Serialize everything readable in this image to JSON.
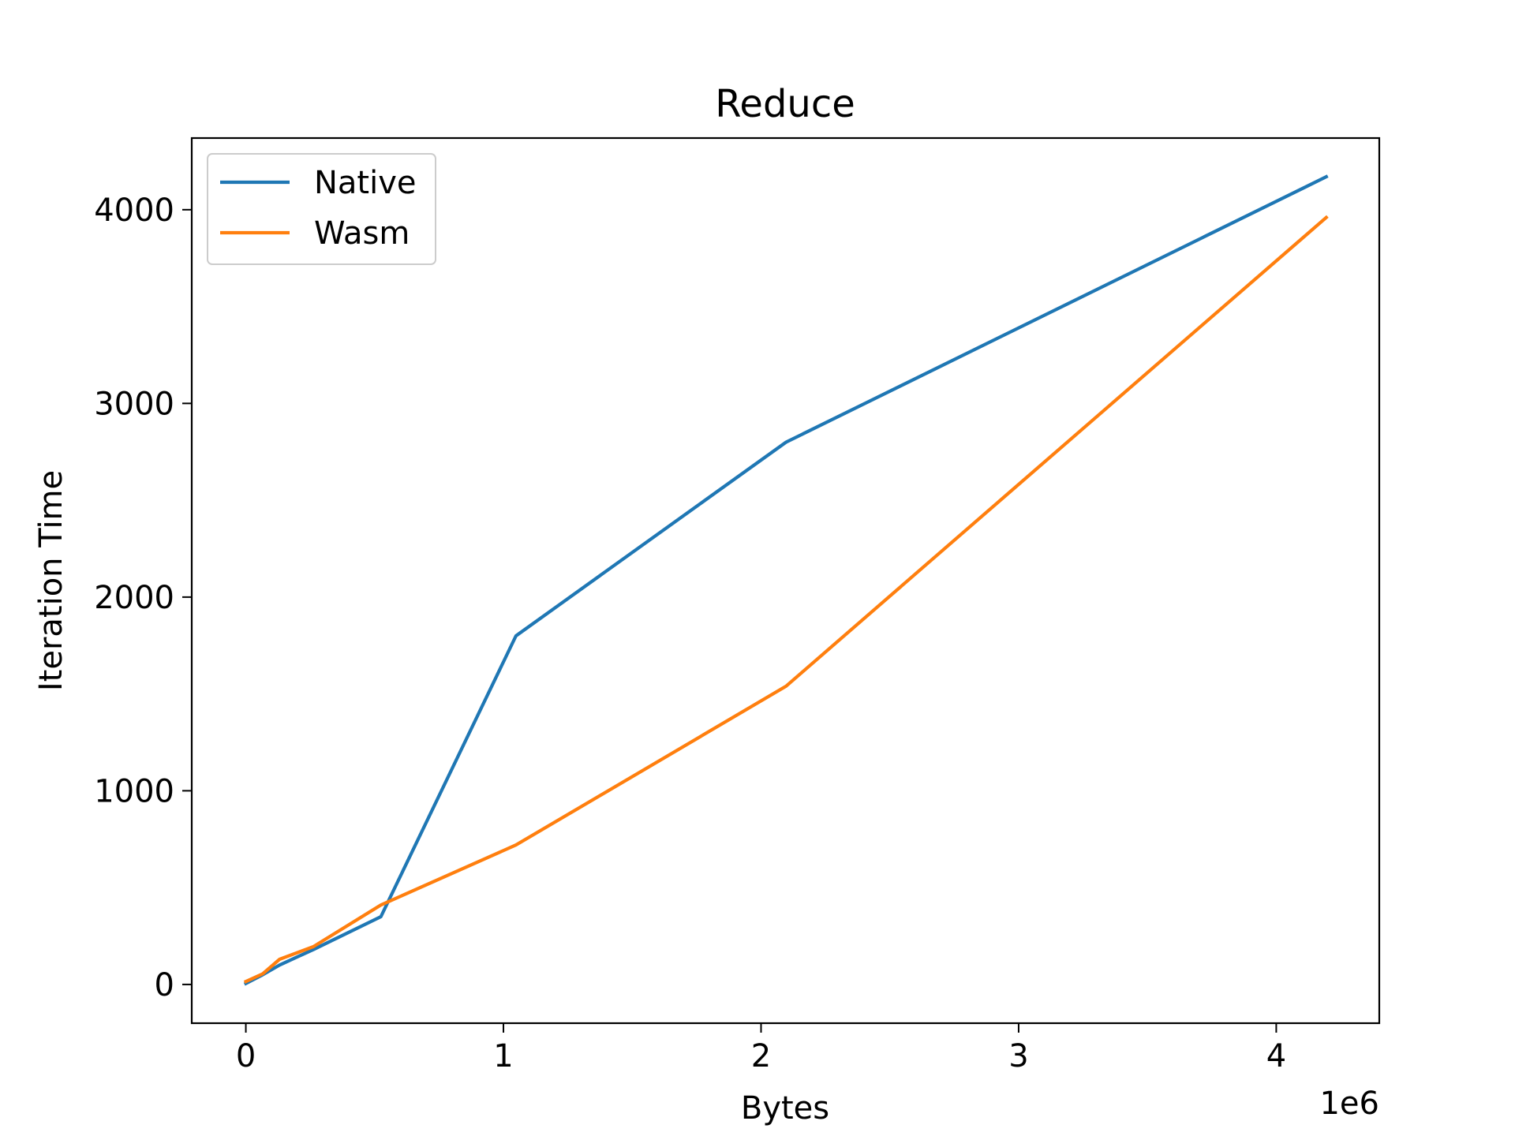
{
  "chart_data": {
    "type": "line",
    "title": "Reduce",
    "xlabel": "Bytes",
    "ylabel": "Iteration Time",
    "x_offset_label": "1e6",
    "x_scale": 1000000,
    "xlim": [
      -210000,
      4400000
    ],
    "ylim": [
      -200,
      4370
    ],
    "x_ticks": [
      0,
      1000000,
      2000000,
      3000000,
      4000000
    ],
    "x_tick_labels": [
      "0",
      "1",
      "2",
      "3",
      "4"
    ],
    "y_ticks": [
      0,
      1000,
      2000,
      3000,
      4000
    ],
    "y_tick_labels": [
      "0",
      "1000",
      "2000",
      "3000",
      "4000"
    ],
    "grid": false,
    "legend_position": "top-left",
    "series": [
      {
        "name": "Native",
        "color": "#1f77b4",
        "x": [
          0,
          65536,
          131072,
          262144,
          524288,
          1048576,
          2097152,
          4194304
        ],
        "y": [
          5,
          50,
          100,
          180,
          350,
          1800,
          2800,
          4170
        ]
      },
      {
        "name": "Wasm",
        "color": "#ff7f0e",
        "x": [
          0,
          65536,
          131072,
          262144,
          524288,
          1048576,
          2097152,
          4194304
        ],
        "y": [
          15,
          55,
          130,
          195,
          410,
          720,
          1540,
          3960
        ]
      }
    ]
  }
}
